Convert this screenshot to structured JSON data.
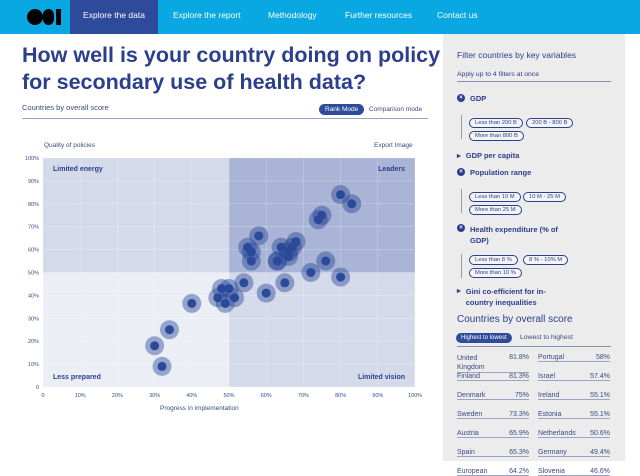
{
  "nav": {
    "tabs": [
      "Explore the data",
      "Explore the report",
      "Methodology",
      "Further resources",
      "Contact us"
    ],
    "active": 0
  },
  "main": {
    "title": "How well is your country doing on policy for secondary use of health data?",
    "subtitle": "Countries by overall score",
    "rank_mode": "Rank Mode",
    "comparison_mode": "Comparison mode",
    "y_title": "Quality of policies",
    "export": "Export Image",
    "x_title": "Progress in implementation"
  },
  "chart_data": {
    "type": "scatter",
    "xlabel": "Progress in implementation",
    "ylabel": "Quality of policies",
    "xlim": [
      0,
      100
    ],
    "ylim": [
      0,
      100
    ],
    "x_ticks": [
      "0",
      "10%",
      "20%",
      "30%",
      "40%",
      "50%",
      "60%",
      "70%",
      "80%",
      "90%",
      "100%"
    ],
    "y_ticks": [
      "0",
      "10%",
      "20%",
      "30%",
      "40%",
      "50%",
      "60%",
      "70%",
      "80%",
      "90%",
      "100%"
    ],
    "quadrants": [
      "Limited energy",
      "Leaders",
      "Less prepared",
      "Limited vision"
    ],
    "points": [
      [
        80,
        84
      ],
      [
        83,
        80
      ],
      [
        75,
        75
      ],
      [
        74,
        73
      ],
      [
        58,
        66
      ],
      [
        55,
        61
      ],
      [
        56,
        59
      ],
      [
        56,
        55
      ],
      [
        64,
        61
      ],
      [
        67,
        61
      ],
      [
        68,
        63.5
      ],
      [
        66,
        59
      ],
      [
        66,
        57
      ],
      [
        63,
        55
      ],
      [
        63,
        55
      ],
      [
        76,
        55
      ],
      [
        72,
        50
      ],
      [
        80,
        48
      ],
      [
        54,
        45.5
      ],
      [
        65,
        45.5
      ],
      [
        60,
        41
      ],
      [
        48,
        43
      ],
      [
        50,
        43
      ],
      [
        47,
        39
      ],
      [
        51.5,
        39
      ],
      [
        49,
        36.5
      ],
      [
        40,
        36.5
      ],
      [
        34,
        25
      ],
      [
        30,
        18
      ],
      [
        32,
        9
      ]
    ],
    "colors": {
      "dot": "#2b4a9a",
      "leaders": "#a9b4d6",
      "mid": "#d5daea",
      "low": "#eceef6"
    }
  },
  "sidebar": {
    "title": "Filter countries by key variables",
    "hint": "Apply up to 4 filters at once",
    "filters": [
      {
        "label": "GDP",
        "open": true,
        "options": [
          "Less than 200 B",
          "200 B - 800 B",
          "More than 800 B"
        ]
      },
      {
        "label": "GDP per capita",
        "open": false
      },
      {
        "label": "Population range",
        "open": true,
        "options": [
          "Less than 10 M",
          "10 M - 25 M",
          "More than 25 M"
        ]
      },
      {
        "label": "Health expenditure (% of GDP)",
        "open": true,
        "options": [
          "Less than 8 %",
          "8 % - 10% M",
          "More than 10 %"
        ]
      },
      {
        "label": "Gini co-efficient for in-country inequalities",
        "open": false
      }
    ],
    "ranking": {
      "title": "Countries by overall score",
      "sort_active": "Highest to lowest",
      "sort_other": "Lowest to highest",
      "left": [
        [
          "United Kingdom",
          "81.8%"
        ],
        [
          "Finland",
          "81.3%"
        ],
        [
          "Denmark",
          "75%"
        ],
        [
          "Sweden",
          "73.3%"
        ],
        [
          "Austria",
          "65.9%"
        ],
        [
          "Spain",
          "65.3%"
        ],
        [
          "European",
          "64.2%"
        ]
      ],
      "right": [
        [
          "Portugal",
          "58%"
        ],
        [
          "Israel",
          "57.4%"
        ],
        [
          "Ireland",
          "55.1%"
        ],
        [
          "Estonia",
          "55.1%"
        ],
        [
          "Netherlands",
          "50.6%"
        ],
        [
          "Germany",
          "49.4%"
        ],
        [
          "Slovenia",
          "46.6%"
        ]
      ]
    }
  }
}
